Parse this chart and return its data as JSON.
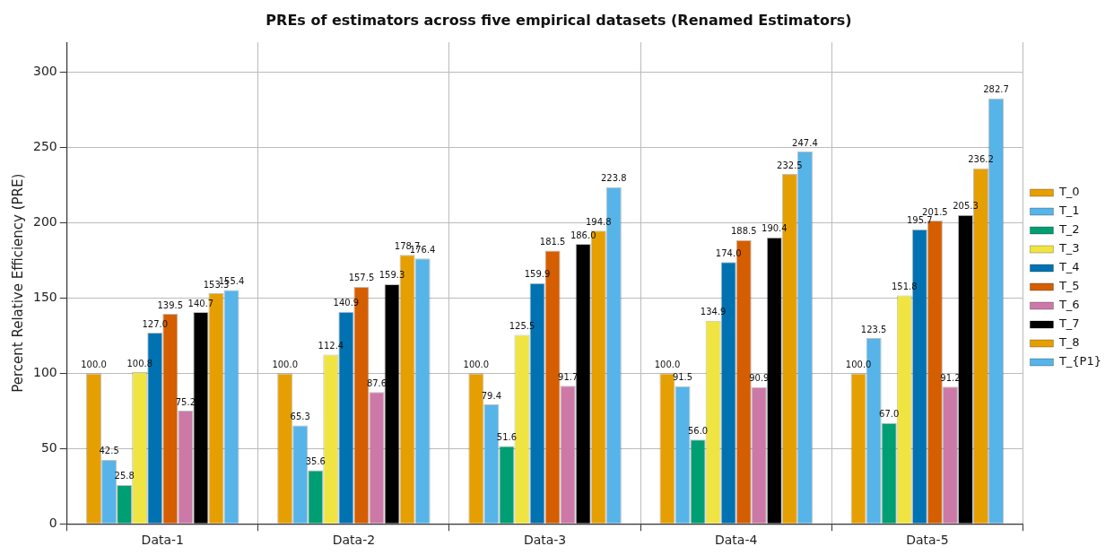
{
  "chart_data": {
    "type": "bar",
    "title": "PREs of estimators across five empirical datasets (Renamed Estimators)",
    "ylabel": "Percent Relative Efficiency (PRE)",
    "categories": [
      "Data-1",
      "Data-2",
      "Data-3",
      "Data-4",
      "Data-5"
    ],
    "series": [
      {
        "name": "T_0",
        "color": "#e69f00",
        "values": [
          100.0,
          100.0,
          100.0,
          100.0,
          100.0
        ],
        "value_labels": [
          "100.0",
          "100.0",
          "100.0",
          "100.0",
          "100.0"
        ]
      },
      {
        "name": "T_1",
        "color": "#56b4e9",
        "values": [
          42.5,
          65.3,
          79.4,
          91.5,
          123.5
        ],
        "value_labels": [
          "42.5",
          "65.3",
          "79.4",
          "91.5",
          "123.5"
        ]
      },
      {
        "name": "T_2",
        "color": "#009e73",
        "values": [
          25.8,
          35.6,
          51.6,
          56.0,
          67.0
        ],
        "value_labels": [
          "25.8",
          "35.6",
          "51.6",
          "56.0",
          "67.0"
        ]
      },
      {
        "name": "T_3",
        "color": "#f0e442",
        "values": [
          100.8,
          112.4,
          125.5,
          134.9,
          151.8
        ],
        "value_labels": [
          "100.8",
          "112.4",
          "125.5",
          "134.9",
          "151.8"
        ]
      },
      {
        "name": "T_4",
        "color": "#0072b2",
        "values": [
          127.0,
          140.9,
          159.9,
          174.0,
          195.7
        ],
        "value_labels": [
          "127.0",
          "140.9",
          "159.9",
          "174.0",
          "195.7"
        ]
      },
      {
        "name": "T_5",
        "color": "#d55e00",
        "values": [
          139.5,
          157.5,
          181.5,
          188.5,
          201.5
        ],
        "value_labels": [
          "139.5",
          "157.5",
          "181.5",
          "188.5",
          "201.5"
        ]
      },
      {
        "name": "T_6",
        "color": "#cc79a7",
        "values": [
          75.2,
          87.6,
          91.7,
          90.9,
          91.2
        ],
        "value_labels": [
          "75.2",
          "87.6",
          "91.7",
          "90.9",
          "91.2"
        ]
      },
      {
        "name": "T_7",
        "color": "#000000",
        "values": [
          140.7,
          159.3,
          186.0,
          190.4,
          205.3
        ],
        "value_labels": [
          "140.7",
          "159.3",
          "186.0",
          "190.4",
          "205.3"
        ]
      },
      {
        "name": "T_8",
        "color": "#e69f00",
        "values": [
          153.3,
          178.7,
          194.8,
          232.5,
          236.2
        ],
        "value_labels": [
          "153.3",
          "178.7",
          "194.8",
          "232.5",
          "236.2"
        ]
      },
      {
        "name": "T_{P1}",
        "color": "#56b4e9",
        "values": [
          155.4,
          176.4,
          223.8,
          247.4,
          282.7
        ],
        "value_labels": [
          "155.4",
          "176.4",
          "223.8",
          "247.4",
          "282.7"
        ]
      }
    ],
    "ylim": [
      0,
      320
    ],
    "yticks": [
      0,
      50,
      100,
      150,
      200,
      250,
      300
    ],
    "grid": true,
    "legend": "right"
  }
}
